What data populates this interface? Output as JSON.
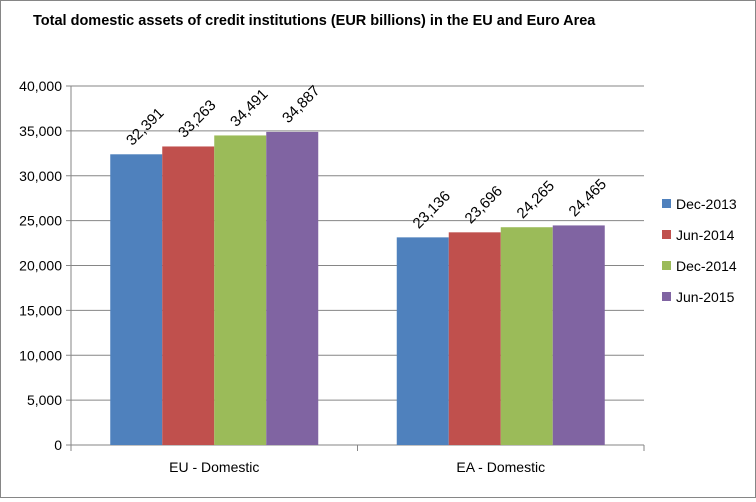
{
  "chart_data": {
    "type": "bar",
    "title": "Total domestic assets of credit institutions (EUR billions) in the EU and Euro Area",
    "xlabel": "",
    "ylabel": "",
    "categories": [
      "EU - Domestic",
      "EA - Domestic"
    ],
    "series": [
      {
        "name": "Dec-2013",
        "values": [
          32391,
          23136
        ],
        "color": "#4F81BD"
      },
      {
        "name": "Jun-2014",
        "values": [
          33263,
          23696
        ],
        "color": "#C0504D"
      },
      {
        "name": "Dec-2014",
        "values": [
          34491,
          24265
        ],
        "color": "#9BBB59"
      },
      {
        "name": "Jun-2015",
        "values": [
          34887,
          24465
        ],
        "color": "#8064A2"
      }
    ],
    "data_labels": [
      [
        "32,391",
        "23,136"
      ],
      [
        "33,263",
        "23,696"
      ],
      [
        "34,491",
        "24,265"
      ],
      [
        "34,887",
        "24,465"
      ]
    ],
    "ylim": [
      0,
      40000
    ],
    "yticks": [
      0,
      5000,
      10000,
      15000,
      20000,
      25000,
      30000,
      35000,
      40000
    ],
    "ytick_labels": [
      "0",
      "5,000",
      "10,000",
      "15,000",
      "20,000",
      "25,000",
      "30,000",
      "35,000",
      "40,000"
    ],
    "grid": "horizontal",
    "legend_position": "right"
  }
}
